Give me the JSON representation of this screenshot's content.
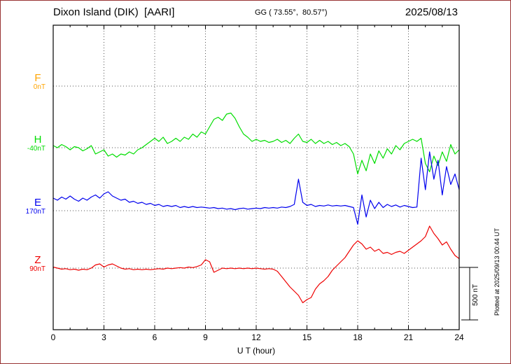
{
  "header": {
    "title": "Dixon Island (DIK)  [AARI]",
    "coords": "GG ( 73.55°,  80.57°)",
    "date": "2025/08/13"
  },
  "footer": {
    "note": "Plotted at 2025/09/13 00:44 UT"
  },
  "scale_bar": {
    "label": "500 nT",
    "nT": 500
  },
  "chart_data": {
    "type": "line",
    "title": "Dixon Island (DIK) [AARI] magnetogram 2025/08/13",
    "xlabel": "U T (hour)",
    "x_ticks": [
      0,
      3,
      6,
      9,
      12,
      15,
      18,
      21,
      24
    ],
    "x_start": 0,
    "x_step_hours": 0.25,
    "x_max": 24,
    "scale_bar_nT": 500,
    "values_are": "nT deviation from each component baseline",
    "grid": "dotted horizontal baseline per component, dotted vertical every 3 hours",
    "legend_position": "left-outside",
    "series": [
      {
        "name": "F",
        "color": "#ffa500",
        "baseline_label": "0nT",
        "values": []
      },
      {
        "name": "H",
        "color": "#00dd00",
        "baseline_label": "-40nT",
        "values": [
          20,
          0,
          30,
          10,
          -20,
          10,
          0,
          -30,
          -10,
          20,
          -60,
          -40,
          -20,
          -80,
          -60,
          -90,
          -60,
          -70,
          -40,
          -60,
          -20,
          0,
          30,
          60,
          90,
          60,
          100,
          40,
          60,
          90,
          60,
          100,
          80,
          130,
          100,
          150,
          130,
          200,
          270,
          290,
          260,
          320,
          330,
          280,
          200,
          130,
          100,
          60,
          80,
          60,
          70,
          50,
          60,
          80,
          50,
          70,
          40,
          90,
          130,
          60,
          50,
          80,
          40,
          70,
          40,
          60,
          30,
          50,
          20,
          40,
          10,
          -60,
          -250,
          -120,
          -220,
          -60,
          -150,
          -30,
          -100,
          -10,
          -60,
          20,
          -20,
          40,
          60,
          80,
          60,
          90,
          -150,
          -230,
          -80,
          -170,
          -40,
          -130,
          30,
          -60,
          -20
        ]
      },
      {
        "name": "E",
        "color": "#0000ee",
        "baseline_label": "170nT",
        "values": [
          120,
          100,
          130,
          110,
          140,
          110,
          90,
          120,
          100,
          130,
          150,
          120,
          160,
          180,
          140,
          120,
          100,
          110,
          80,
          90,
          70,
          80,
          60,
          70,
          50,
          60,
          40,
          50,
          40,
          50,
          30,
          40,
          30,
          40,
          30,
          35,
          30,
          25,
          30,
          20,
          25,
          15,
          20,
          10,
          20,
          25,
          15,
          20,
          25,
          20,
          30,
          25,
          30,
          25,
          35,
          30,
          40,
          60,
          300,
          80,
          50,
          60,
          40,
          50,
          45,
          55,
          45,
          50,
          45,
          50,
          40,
          30,
          -130,
          150,
          -60,
          100,
          20,
          80,
          30,
          60,
          40,
          55,
          35,
          50,
          40,
          30,
          35,
          500,
          200,
          560,
          300,
          480,
          150,
          420,
          250,
          350,
          200
        ]
      },
      {
        "name": "Z",
        "color": "#ee0000",
        "baseline_label": "90nT",
        "values": [
          10,
          0,
          -10,
          -5,
          -15,
          -10,
          -20,
          -10,
          -15,
          0,
          30,
          40,
          10,
          30,
          40,
          20,
          0,
          -10,
          -5,
          -15,
          -10,
          -15,
          -10,
          -15,
          -10,
          -5,
          -10,
          0,
          -5,
          0,
          5,
          0,
          10,
          5,
          15,
          30,
          80,
          60,
          -40,
          -20,
          0,
          -5,
          0,
          -5,
          0,
          -5,
          0,
          -5,
          0,
          -5,
          -10,
          -5,
          -10,
          -30,
          -80,
          -130,
          -180,
          -220,
          -260,
          -330,
          -300,
          -280,
          -200,
          -150,
          -120,
          -80,
          -20,
          20,
          60,
          100,
          160,
          220,
          260,
          230,
          180,
          200,
          160,
          180,
          140,
          150,
          130,
          150,
          160,
          140,
          170,
          200,
          230,
          260,
          300,
          400,
          330,
          280,
          220,
          250,
          180,
          120,
          90
        ]
      }
    ]
  }
}
